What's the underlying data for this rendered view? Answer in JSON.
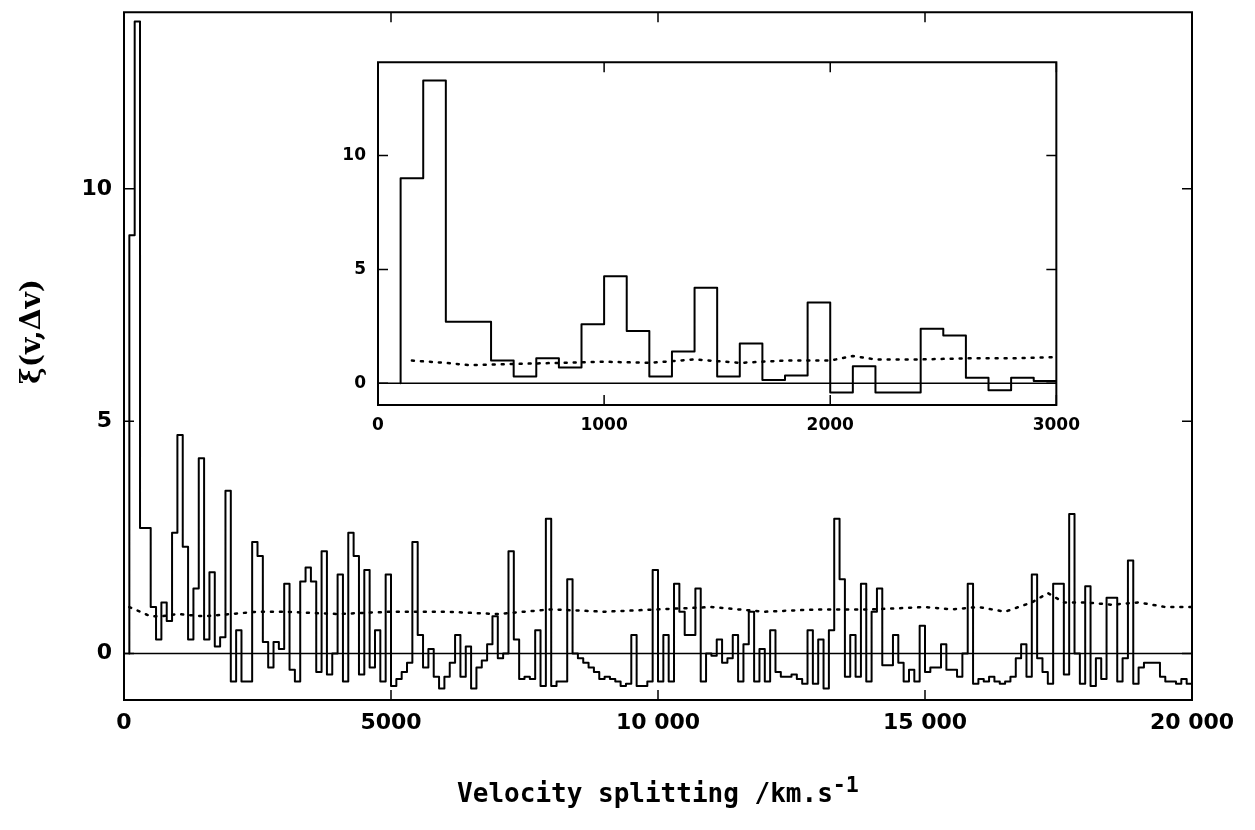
{
  "chart_data": [
    {
      "type": "step",
      "xlabel": "Velocity splitting /km.s$^{-1}$",
      "ylabel": "ξ(v,Δv)",
      "xlim": [
        0,
        20000
      ],
      "ylim": [
        -1.0,
        13.8
      ],
      "xticks": [
        0,
        5000,
        {
          "value": 10000,
          "label": "10 000"
        },
        {
          "value": 15000,
          "label": "15 000"
        },
        {
          "value": 20000,
          "label": "20 000"
        }
      ],
      "yticks": [
        0,
        5,
        10
      ],
      "ref_lines": [
        {
          "axis": "y",
          "value": 0,
          "color": "#000000"
        }
      ],
      "series": [
        {
          "type": "step",
          "color": "#000000",
          "line_style": "solid",
          "x": [
            100,
            200,
            300,
            400,
            500,
            600,
            700,
            800,
            900,
            1000,
            1100,
            1200,
            1300,
            1400,
            1500,
            1600,
            1700,
            1800,
            1900,
            2000,
            2100,
            2200,
            2300,
            2400,
            2500,
            2600,
            2700,
            2800,
            2900,
            3000,
            3100,
            3200,
            3300,
            3400,
            3500,
            3600,
            3700,
            3800,
            3900,
            4000,
            4100,
            4200,
            4300,
            4400,
            4500,
            4600,
            4700,
            4800,
            4900,
            5000,
            5100,
            5200,
            5300,
            5400,
            5500,
            5600,
            5700,
            5800,
            5900,
            6000,
            6100,
            6200,
            6300,
            6400,
            6500,
            6600,
            6700,
            6800,
            6900,
            7000,
            7100,
            7200,
            7300,
            7400,
            7500,
            7600,
            7700,
            7800,
            7900,
            8000,
            8100,
            8200,
            8300,
            8400,
            8500,
            8600,
            8700,
            8800,
            8900,
            9000,
            9100,
            9200,
            9300,
            9400,
            9500,
            9600,
            9700,
            9800,
            9900,
            10000,
            10100,
            10200,
            10300,
            10400,
            10500,
            10600,
            10700,
            10800,
            10900,
            11000,
            11100,
            11200,
            11300,
            11400,
            11500,
            11600,
            11700,
            11800,
            11900,
            12000,
            12100,
            12200,
            12300,
            12400,
            12500,
            12600,
            12700,
            12800,
            12900,
            13000,
            13100,
            13200,
            13300,
            13400,
            13500,
            13600,
            13700,
            13800,
            13900,
            14000,
            14100,
            14200,
            14300,
            14400,
            14500,
            14600,
            14700,
            14800,
            14900,
            15000,
            15100,
            15200,
            15300,
            15400,
            15500,
            15600,
            15700,
            15800,
            15900,
            16000,
            16100,
            16200,
            16300,
            16400,
            16500,
            16600,
            16700,
            16800,
            16900,
            17000,
            17100,
            17200,
            17300,
            17400,
            17500,
            17600,
            17700,
            17800,
            17900,
            18000,
            18100,
            18200,
            18300,
            18400,
            18500,
            18600,
            18700,
            18800,
            18900,
            19000,
            19100,
            19200,
            19300,
            19400,
            19500,
            19600,
            19700,
            19800,
            19900,
            20000
          ],
          "values": [
            0,
            9.0,
            13.6,
            2.7,
            2.7,
            1.0,
            0.3,
            1.1,
            0.7,
            2.6,
            4.7,
            2.3,
            0.3,
            1.4,
            4.2,
            0.3,
            1.75,
            0.15,
            0.35,
            3.5,
            -0.6,
            0.5,
            -0.6,
            -0.6,
            2.4,
            2.1,
            0.25,
            -0.3,
            0.25,
            0.1,
            1.5,
            -0.35,
            -0.6,
            1.55,
            1.85,
            1.55,
            -0.4,
            2.2,
            -0.45,
            0.0,
            1.7,
            -0.6,
            2.6,
            2.1,
            -0.45,
            1.8,
            -0.3,
            0.5,
            -0.6,
            1.7,
            -0.7,
            -0.55,
            -0.4,
            -0.2,
            2.4,
            0.4,
            -0.3,
            0.1,
            -0.5,
            -0.75,
            -0.5,
            -0.2,
            0.4,
            -0.5,
            0.15,
            -0.75,
            -0.3,
            -0.15,
            0.2,
            0.8,
            -0.1,
            0,
            2.2,
            0.3,
            -0.55,
            -0.5,
            -0.55,
            0.5,
            -0.7,
            2.9,
            -0.7,
            -0.6,
            -0.6,
            1.6,
            0,
            -0.1,
            -0.2,
            -0.3,
            -0.4,
            -0.55,
            -0.5,
            -0.55,
            -0.6,
            -0.7,
            -0.65,
            0.4,
            -0.7,
            -0.7,
            -0.6,
            1.8,
            -0.6,
            0.4,
            -0.6,
            1.5,
            0.9,
            0.4,
            0.4,
            1.4,
            -0.6,
            0.0,
            -0.05,
            0.3,
            -0.2,
            -0.1,
            0.4,
            -0.6,
            0.2,
            0.9,
            -0.6,
            0.1,
            -0.6,
            0.5,
            -0.4,
            -0.5,
            -0.5,
            -0.45,
            -0.55,
            -0.65,
            0.5,
            -0.65,
            0.3,
            -0.75,
            0.5,
            2.9,
            1.6,
            -0.5,
            0.4,
            -0.5,
            1.5,
            -0.6,
            0.9,
            1.4,
            -0.25,
            -0.25,
            0.4,
            -0.2,
            -0.6,
            -0.35,
            -0.6,
            0.6,
            -0.4,
            -0.3,
            -0.3,
            0.2,
            -0.35,
            -0.35,
            -0.5,
            0,
            1.5,
            -0.65,
            -0.55,
            -0.6,
            -0.5,
            -0.6,
            -0.65,
            -0.6,
            -0.5,
            -0.1,
            0.2,
            -0.5,
            1.7,
            -0.1,
            -0.4,
            -0.65,
            1.5,
            1.5,
            -0.45,
            3.0,
            0,
            -0.65,
            1.45,
            -0.7,
            -0.1,
            -0.55,
            1.2,
            1.2,
            -0.6,
            -0.1,
            2.0,
            -0.65,
            -0.3,
            -0.2,
            -0.2,
            -0.2,
            -0.5,
            -0.6,
            -0.6,
            -0.65,
            -0.55,
            -0.65
          ]
        },
        {
          "type": "line",
          "color": "#000000",
          "line_style": "dotted",
          "x": [
            100,
            300,
            500,
            700,
            1000,
            1500,
            2000,
            2500,
            3000,
            4000,
            5000,
            6000,
            7000,
            8000,
            9000,
            10000,
            11000,
            12000,
            13000,
            14000,
            15000,
            15500,
            16000,
            16500,
            17000,
            17300,
            17600,
            18000,
            18500,
            19000,
            19500,
            20000
          ],
          "values": [
            1.0,
            0.9,
            0.8,
            0.8,
            0.85,
            0.8,
            0.85,
            0.9,
            0.9,
            0.85,
            0.9,
            0.9,
            0.85,
            0.95,
            0.9,
            0.95,
            1.0,
            0.9,
            0.95,
            0.95,
            1.0,
            0.95,
            1.0,
            0.9,
            1.1,
            1.3,
            1.1,
            1.1,
            1.05,
            1.1,
            1.0,
            1.0
          ]
        }
      ]
    },
    {
      "type": "step",
      "xlim": [
        0,
        3000
      ],
      "ylim": [
        -0.95,
        14.1
      ],
      "xticks": [
        0,
        1000,
        2000,
        3000
      ],
      "yticks": [
        0,
        5,
        10
      ],
      "ref_lines": [
        {
          "axis": "y",
          "value": 0,
          "color": "#000000"
        }
      ],
      "series": [
        {
          "type": "step",
          "color": "#000000",
          "line_style": "solid",
          "x": [
            100,
            200,
            300,
            400,
            500,
            600,
            700,
            800,
            900,
            1000,
            1100,
            1200,
            1300,
            1400,
            1500,
            1600,
            1700,
            1800,
            1900,
            2000,
            2100,
            2200,
            2300,
            2400,
            2500,
            2600,
            2700,
            2800,
            2900,
            3000
          ],
          "values": [
            0,
            9.0,
            13.3,
            2.7,
            2.7,
            1.0,
            0.3,
            1.1,
            0.7,
            2.6,
            4.7,
            2.3,
            0.3,
            1.4,
            4.2,
            0.3,
            1.75,
            0.15,
            0.35,
            3.55,
            -0.4,
            0.75,
            -0.4,
            -0.4,
            2.4,
            2.1,
            0.25,
            -0.3,
            0.25,
            0.1
          ]
        },
        {
          "type": "line",
          "color": "#000000",
          "line_style": "dotted",
          "x": [
            150,
            300,
            400,
            600,
            800,
            1000,
            1200,
            1400,
            1600,
            1800,
            2000,
            2100,
            2200,
            2400,
            2600,
            2800,
            3000
          ],
          "values": [
            1.0,
            0.9,
            0.8,
            0.85,
            0.9,
            0.95,
            0.9,
            1.05,
            0.9,
            1.0,
            1.0,
            1.2,
            1.05,
            1.05,
            1.1,
            1.1,
            1.15
          ]
        }
      ]
    }
  ]
}
